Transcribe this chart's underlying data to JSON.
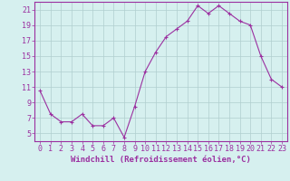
{
  "hours": [
    0,
    1,
    2,
    3,
    4,
    5,
    6,
    7,
    8,
    9,
    10,
    11,
    12,
    13,
    14,
    15,
    16,
    17,
    18,
    19,
    20,
    21,
    22,
    23
  ],
  "values": [
    10.5,
    7.5,
    6.5,
    6.5,
    7.5,
    6.0,
    6.0,
    7.0,
    4.5,
    8.5,
    13.0,
    15.5,
    17.5,
    18.5,
    19.5,
    21.5,
    20.5,
    21.5,
    20.5,
    19.5,
    19.0,
    15.0,
    12.0,
    11.0
  ],
  "line_color": "#9b30a0",
  "marker": "+",
  "bg_color": "#d6f0ef",
  "grid_color": "#b0cece",
  "xlabel": "Windchill (Refroidissement éolien,°C)",
  "xlim": [
    -0.5,
    23.5
  ],
  "ylim": [
    4,
    22
  ],
  "yticks": [
    5,
    7,
    9,
    11,
    13,
    15,
    17,
    19,
    21
  ],
  "xtick_labels": [
    "0",
    "1",
    "2",
    "3",
    "4",
    "5",
    "6",
    "7",
    "8",
    "9",
    "10",
    "11",
    "12",
    "13",
    "14",
    "15",
    "16",
    "17",
    "18",
    "19",
    "20",
    "21",
    "22",
    "23"
  ],
  "label_fontsize": 6.5,
  "tick_fontsize": 6.0,
  "border_color": "#9b30a0"
}
